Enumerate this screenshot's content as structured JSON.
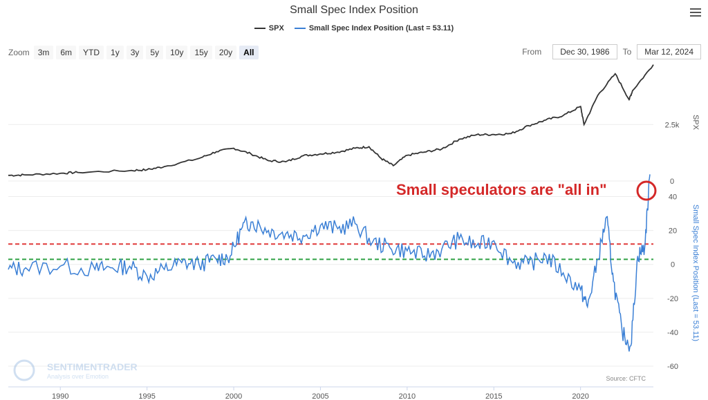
{
  "title": "Small Spec Index Position",
  "legend": [
    {
      "name": "SPX",
      "color": "#333333"
    },
    {
      "name": "Small Spec Index Position (Last = 53.11)",
      "color": "#3a7fd5"
    }
  ],
  "toolbar": {
    "zoom_label": "Zoom",
    "zoom_buttons": [
      "3m",
      "6m",
      "YTD",
      "1y",
      "3y",
      "5y",
      "10y",
      "15y",
      "20y",
      "All"
    ],
    "active": "All",
    "from_label": "From",
    "from_value": "Dec 30, 1986",
    "to_label": "To",
    "to_value": "Mar 12, 2024"
  },
  "annotation": "Small speculators are \"all in\"",
  "watermark": {
    "brand": "SENTIMENTRADER",
    "tagline": "Analysis over Emotion"
  },
  "source": "Source: CFTC",
  "chart_data": [
    {
      "type": "line",
      "name": "SPX",
      "ylabel": "SPX",
      "y_ticks": [
        "0",
        "2.5k"
      ],
      "ylim": [
        0,
        5200
      ],
      "x": [
        1987,
        1988,
        1990,
        1991,
        1994,
        1995,
        1996,
        1998,
        1999,
        2000,
        2001,
        2002,
        2003,
        2004,
        2005,
        2006,
        2007,
        2007.8,
        2008.5,
        2009.2,
        2010,
        2011,
        2012,
        2013,
        2014,
        2015,
        2016,
        2017,
        2018,
        2019,
        2020,
        2020.2,
        2021,
        2022,
        2022.8,
        2023,
        2024.2
      ],
      "values": [
        250,
        270,
        340,
        380,
        460,
        500,
        640,
        1000,
        1300,
        1450,
        1200,
        900,
        850,
        1120,
        1200,
        1280,
        1450,
        1520,
        1000,
        680,
        1140,
        1280,
        1420,
        1850,
        2050,
        2060,
        2100,
        2450,
        2700,
        2900,
        3300,
        2500,
        3800,
        4750,
        3600,
        4000,
        5150
      ],
      "color": "#333333"
    },
    {
      "type": "line",
      "name": "Small Spec Index Position (Last = 53.11)",
      "ylabel": "Small Spec Index Position (Last = 53.11)",
      "y_ticks": [
        "-60",
        "-40",
        "-20",
        "0",
        "20",
        "40"
      ],
      "ylim": [
        -60,
        50
      ],
      "x": [
        1987,
        1988,
        1990,
        1992,
        1993,
        1994,
        1995,
        1996,
        1997,
        1998,
        1999,
        1999.8,
        2000.5,
        2001,
        2002,
        2003,
        2004,
        2005,
        2006,
        2007,
        2008,
        2009,
        2010,
        2011,
        2012,
        2013,
        2014,
        2015,
        2016,
        2017,
        2018,
        2019,
        2020,
        2020.4,
        2021,
        2021.5,
        2021.9,
        2022.4,
        2022.9,
        2023.3,
        2023.7,
        2024
      ],
      "values": [
        -3,
        -2,
        -1,
        -3,
        -2,
        -1,
        -7,
        -3,
        1,
        0,
        3,
        5,
        22,
        25,
        20,
        18,
        17,
        23,
        21,
        24,
        13,
        10,
        8,
        5,
        9,
        15,
        11,
        14,
        2,
        0,
        5,
        -5,
        -15,
        -25,
        3,
        28,
        -10,
        -40,
        -48,
        5,
        10,
        53.11
      ],
      "reference_lines": [
        {
          "value": 12,
          "color": "#e03a3a",
          "style": "dashed"
        },
        {
          "value": 3,
          "color": "#2ea043",
          "style": "dashed"
        }
      ],
      "color": "#3a7fd5"
    }
  ],
  "x_ticks": [
    "1990",
    "1995",
    "2000",
    "2005",
    "2010",
    "2015",
    "2020"
  ]
}
